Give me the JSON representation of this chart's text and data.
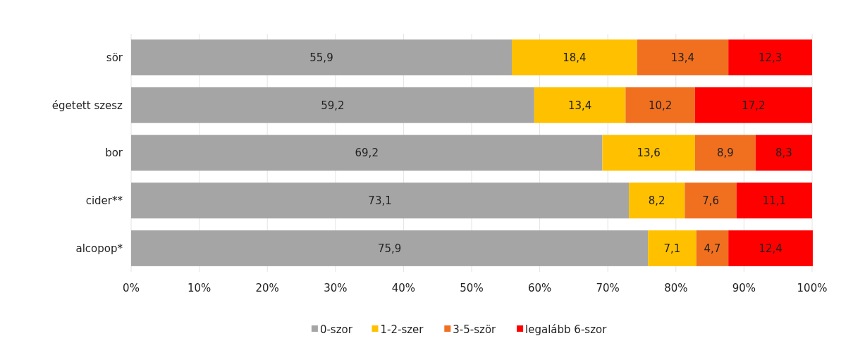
{
  "chart_data": {
    "type": "bar",
    "orientation": "horizontal",
    "stacked": true,
    "categories": [
      "sör",
      "égetett szesz",
      "bor",
      "cider**",
      "alcopop*"
    ],
    "series": [
      {
        "name": "0-szor",
        "color": "#a5a5a5",
        "values": [
          55.9,
          59.2,
          69.2,
          73.1,
          75.9
        ],
        "value_labels": [
          "55,9",
          "59,2",
          "69,2",
          "73,1",
          "75,9"
        ]
      },
      {
        "name": "1-2-szer",
        "color": "#ffc000",
        "values": [
          18.4,
          13.4,
          13.6,
          8.2,
          7.1
        ],
        "value_labels": [
          "18,4",
          "13,4",
          "13,6",
          "8,2",
          "7,1"
        ]
      },
      {
        "name": "3-5-ször",
        "color": "#f07020",
        "values": [
          13.4,
          10.2,
          8.9,
          7.6,
          4.7
        ],
        "value_labels": [
          "13,4",
          "10,2",
          "8,9",
          "7,6",
          "4,7"
        ]
      },
      {
        "name": "legalább 6-szor",
        "color": "#ff0000",
        "values": [
          12.3,
          17.2,
          8.3,
          11.1,
          12.4
        ],
        "value_labels": [
          "12,3",
          "17,2",
          "8,3",
          "11,1",
          "12,4"
        ]
      }
    ],
    "xlim": [
      0,
      100
    ],
    "xticks": [
      {
        "value": 0,
        "label": "0%"
      },
      {
        "value": 10,
        "label": "10%"
      },
      {
        "value": 20,
        "label": "20%"
      },
      {
        "value": 30,
        "label": "30%"
      },
      {
        "value": 40,
        "label": "40%"
      },
      {
        "value": 50,
        "label": "50%"
      },
      {
        "value": 60,
        "label": "60%"
      },
      {
        "value": 70,
        "label": "70%"
      },
      {
        "value": 80,
        "label": "80%"
      },
      {
        "value": 90,
        "label": "90%"
      },
      {
        "value": 100,
        "label": "100%"
      }
    ],
    "grid": "x",
    "legend": "bottom"
  }
}
